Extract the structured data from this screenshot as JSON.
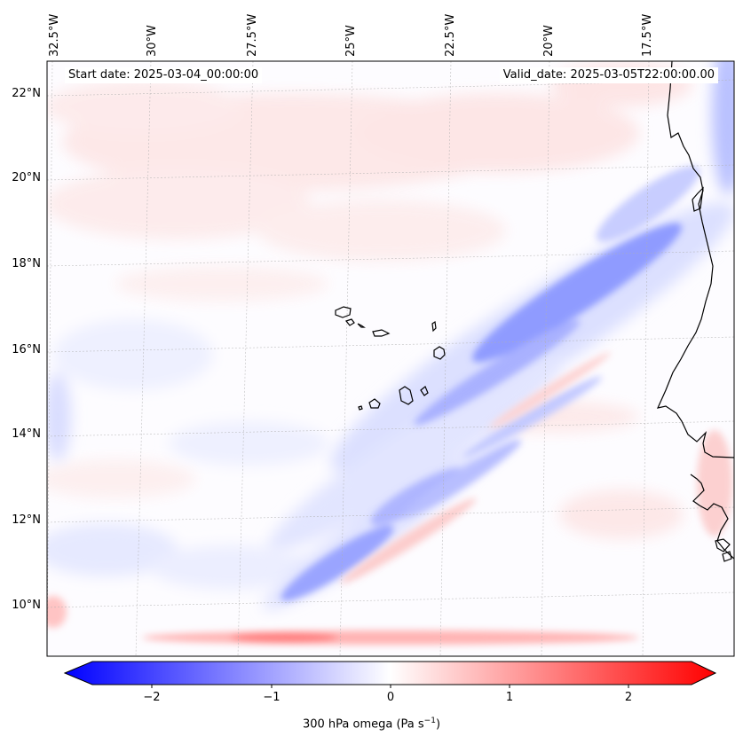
{
  "header": {
    "start_date": "Start date: 2025-03-04_00:00:00",
    "valid_date": "Valid_date: 2025-03-05T22:00:00.00"
  },
  "longitude_labels": [
    "32.5°W",
    "30°W",
    "27.5°W",
    "25°W",
    "22.5°W",
    "20°W",
    "17.5°W"
  ],
  "latitude_labels": [
    "22°N",
    "20°N",
    "18°N",
    "16°N",
    "14°N",
    "12°N",
    "10°N"
  ],
  "colorbar": {
    "tick_labels": [
      "−2",
      "−1",
      "0",
      "1",
      "2"
    ],
    "label_main": "300 hPa omega (Pa s",
    "label_sup": "−1",
    "label_close": ")",
    "range": [
      -2.5,
      2.5
    ],
    "colormap": "bwr",
    "low_color": "#0000ff",
    "mid_color": "#ffffff",
    "high_color": "#ff0000"
  },
  "colors": {
    "coast": "#000000",
    "grid": "#b0b0b0"
  }
}
